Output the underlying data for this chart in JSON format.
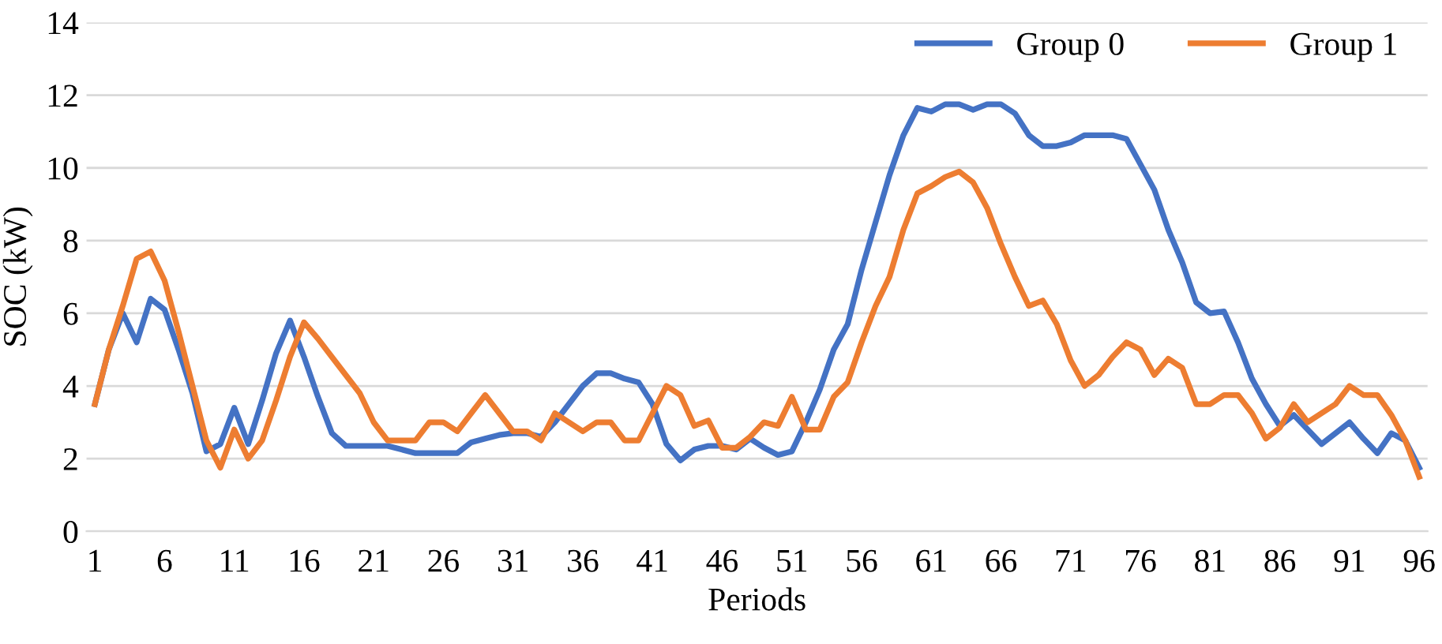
{
  "chart_data": {
    "type": "line",
    "xlabel": "Periods",
    "ylabel": "SOC (kW)",
    "categories": [
      "1",
      null,
      null,
      null,
      null,
      "6",
      null,
      null,
      null,
      null,
      "11",
      null,
      null,
      null,
      null,
      "16",
      null,
      null,
      null,
      null,
      "21",
      null,
      null,
      null,
      null,
      "26",
      null,
      null,
      null,
      null,
      "31",
      null,
      null,
      null,
      null,
      "36",
      null,
      null,
      null,
      null,
      "41",
      null,
      null,
      null,
      null,
      "46",
      null,
      null,
      null,
      null,
      "51",
      null,
      null,
      null,
      null,
      "56",
      null,
      null,
      null,
      null,
      "61",
      null,
      null,
      null,
      null,
      "66",
      null,
      null,
      null,
      null,
      "71",
      null,
      null,
      null,
      null,
      "76",
      null,
      null,
      null,
      null,
      "81",
      null,
      null,
      null,
      null,
      "86",
      null,
      null,
      null,
      null,
      "91",
      null,
      null,
      null,
      null,
      "96"
    ],
    "series": [
      {
        "name": "Group 0",
        "color": "#4472c4",
        "values": [
          3.5,
          5.0,
          6.0,
          5.2,
          6.4,
          6.1,
          5.0,
          3.8,
          2.2,
          2.4,
          3.4,
          2.4,
          3.6,
          4.9,
          5.8,
          4.8,
          3.7,
          2.7,
          2.35,
          2.35,
          2.35,
          2.35,
          2.25,
          2.15,
          2.15,
          2.15,
          2.15,
          2.45,
          2.55,
          2.65,
          2.7,
          2.7,
          2.6,
          3.0,
          3.5,
          4.0,
          4.35,
          4.35,
          4.2,
          4.1,
          3.5,
          2.4,
          1.95,
          2.25,
          2.35,
          2.35,
          2.25,
          2.55,
          2.3,
          2.1,
          2.2,
          3.0,
          3.9,
          5.0,
          5.7,
          7.2,
          8.5,
          9.8,
          10.9,
          11.65,
          11.55,
          11.75,
          11.75,
          11.6,
          11.75,
          11.75,
          11.5,
          10.9,
          10.6,
          10.6,
          10.7,
          10.9,
          10.9,
          10.9,
          10.8,
          10.1,
          9.4,
          8.3,
          7.4,
          6.3,
          6.0,
          6.05,
          5.2,
          4.2,
          3.5,
          2.9,
          3.2,
          2.8,
          2.4,
          2.7,
          3.0,
          2.55,
          2.15,
          2.7,
          2.5,
          1.75
        ]
      },
      {
        "name": "Group 1",
        "color": "#ed7d31",
        "values": [
          3.5,
          5.0,
          6.2,
          7.5,
          7.7,
          6.9,
          5.5,
          4.0,
          2.5,
          1.75,
          2.8,
          2.0,
          2.5,
          3.6,
          4.8,
          5.75,
          5.3,
          4.8,
          4.3,
          3.8,
          3.0,
          2.5,
          2.5,
          2.5,
          3.0,
          3.0,
          2.75,
          3.25,
          3.75,
          3.25,
          2.75,
          2.75,
          2.5,
          3.25,
          3.0,
          2.75,
          3.0,
          3.0,
          2.5,
          2.5,
          3.25,
          4.0,
          3.75,
          2.9,
          3.05,
          2.3,
          2.3,
          2.6,
          3.0,
          2.9,
          3.7,
          2.8,
          2.8,
          3.7,
          4.1,
          5.2,
          6.2,
          7.0,
          8.3,
          9.3,
          9.5,
          9.75,
          9.9,
          9.6,
          8.9,
          7.9,
          7.0,
          6.2,
          6.35,
          5.7,
          4.7,
          4.0,
          4.3,
          4.8,
          5.2,
          5.0,
          4.3,
          4.75,
          4.5,
          3.5,
          3.5,
          3.75,
          3.75,
          3.25,
          2.55,
          2.85,
          3.5,
          3.0,
          3.25,
          3.5,
          4.0,
          3.75,
          3.75,
          3.2,
          2.5,
          1.5
        ]
      }
    ],
    "ylim": [
      0,
      14
    ],
    "yticks": [
      0,
      2,
      4,
      6,
      8,
      10,
      12,
      14
    ],
    "grid": "y",
    "legend": "top right"
  }
}
